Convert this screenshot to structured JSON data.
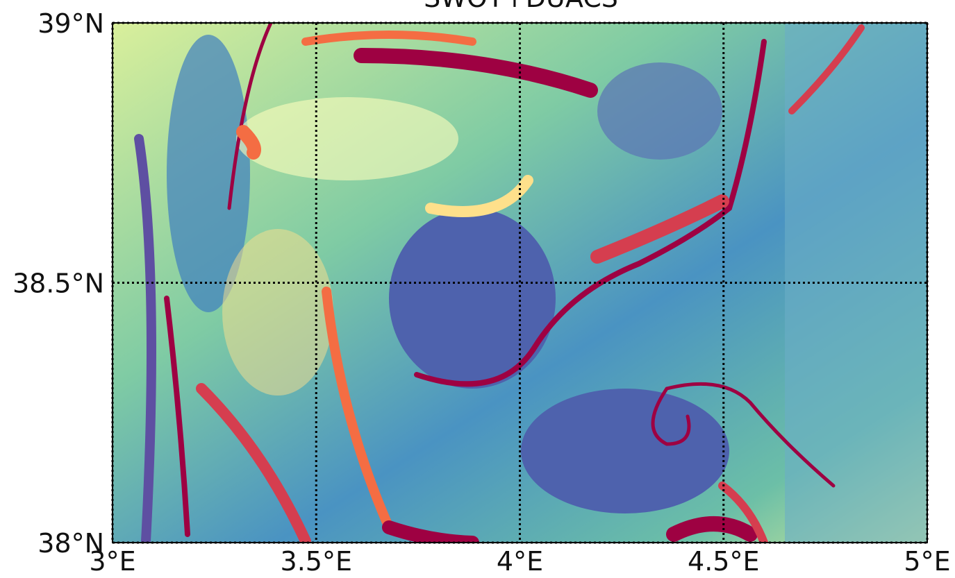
{
  "chart_data": {
    "type": "map",
    "title": "SWOT+DUACS",
    "xlim": [
      3,
      5
    ],
    "ylim": [
      38,
      39
    ],
    "xticks": [
      {
        "value": 3,
        "label": "3°E"
      },
      {
        "value": 3.5,
        "label": "3.5°E"
      },
      {
        "value": 4,
        "label": "4°E"
      },
      {
        "value": 4.5,
        "label": "4.5°E"
      },
      {
        "value": 5,
        "label": "5°E"
      }
    ],
    "yticks": [
      {
        "value": 38,
        "label": "38°N"
      },
      {
        "value": 38.5,
        "label": "38.5°N"
      },
      {
        "value": 39,
        "label": "39°N"
      }
    ],
    "grid": true
  }
}
